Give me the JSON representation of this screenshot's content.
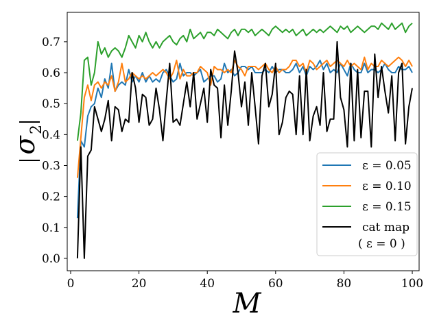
{
  "chart_data": {
    "type": "line",
    "title": "",
    "xlabel": "M",
    "ylabel_base": "σ",
    "ylabel_sub": "2",
    "xlim": [
      -1,
      102
    ],
    "ylim": [
      -0.04,
      0.795
    ],
    "xticks": [
      0,
      20,
      40,
      60,
      80,
      100
    ],
    "yticks": [
      0.0,
      0.1,
      0.2,
      0.3,
      0.4,
      0.5,
      0.6,
      0.7
    ],
    "xtick_labels": [
      "0",
      "20",
      "40",
      "60",
      "80",
      "100"
    ],
    "ytick_labels": [
      "0.0",
      "0.1",
      "0.2",
      "0.3",
      "0.4",
      "0.5",
      "0.6",
      "0.7"
    ],
    "grid": false,
    "legend_position": "lower-right",
    "x": [
      2,
      3,
      4,
      5,
      6,
      7,
      8,
      9,
      10,
      11,
      12,
      13,
      14,
      15,
      16,
      17,
      18,
      19,
      20,
      21,
      22,
      23,
      24,
      25,
      26,
      27,
      28,
      29,
      30,
      31,
      32,
      33,
      34,
      35,
      36,
      37,
      38,
      39,
      40,
      41,
      42,
      43,
      44,
      45,
      46,
      47,
      48,
      49,
      50,
      51,
      52,
      53,
      54,
      55,
      56,
      57,
      58,
      59,
      60,
      61,
      62,
      63,
      64,
      65,
      66,
      67,
      68,
      69,
      70,
      71,
      72,
      73,
      74,
      75,
      76,
      77,
      78,
      79,
      80,
      81,
      82,
      83,
      84,
      85,
      86,
      87,
      88,
      89,
      90,
      91,
      92,
      93,
      94,
      95,
      96,
      97,
      98,
      99,
      100
    ],
    "series": [
      {
        "name": "ε = 0.05",
        "color": "#1f77b4",
        "values": [
          0.13,
          0.38,
          0.36,
          0.46,
          0.49,
          0.5,
          0.55,
          0.52,
          0.58,
          0.55,
          0.63,
          0.54,
          0.56,
          0.57,
          0.56,
          0.61,
          0.57,
          0.59,
          0.57,
          0.6,
          0.57,
          0.59,
          0.57,
          0.58,
          0.57,
          0.6,
          0.61,
          0.59,
          0.57,
          0.58,
          0.63,
          0.59,
          0.6,
          0.6,
          0.59,
          0.6,
          0.61,
          0.57,
          0.58,
          0.59,
          0.59,
          0.57,
          0.58,
          0.63,
          0.6,
          0.61,
          0.59,
          0.6,
          0.62,
          0.62,
          0.61,
          0.62,
          0.6,
          0.6,
          0.6,
          0.61,
          0.6,
          0.62,
          0.6,
          0.61,
          0.61,
          0.6,
          0.6,
          0.61,
          0.63,
          0.6,
          0.62,
          0.59,
          0.62,
          0.61,
          0.62,
          0.64,
          0.61,
          0.63,
          0.6,
          0.61,
          0.6,
          0.63,
          0.61,
          0.59,
          0.63,
          0.61,
          0.6,
          0.6,
          0.63,
          0.6,
          0.61,
          0.61,
          0.6,
          0.61,
          0.63,
          0.61,
          0.6,
          0.6,
          0.62,
          0.61,
          0.61,
          0.62,
          0.6
        ]
      },
      {
        "name": "ε = 0.10",
        "color": "#ff7f0e",
        "values": [
          0.26,
          0.39,
          0.52,
          0.56,
          0.51,
          0.56,
          0.57,
          0.55,
          0.57,
          0.56,
          0.59,
          0.54,
          0.57,
          0.63,
          0.57,
          0.58,
          0.6,
          0.59,
          0.58,
          0.59,
          0.58,
          0.59,
          0.6,
          0.59,
          0.6,
          0.61,
          0.6,
          0.58,
          0.6,
          0.64,
          0.58,
          0.61,
          0.59,
          0.59,
          0.6,
          0.6,
          0.62,
          0.61,
          0.6,
          0.56,
          0.62,
          0.61,
          0.61,
          0.6,
          0.61,
          0.6,
          0.64,
          0.62,
          0.61,
          0.59,
          0.62,
          0.62,
          0.62,
          0.61,
          0.62,
          0.63,
          0.61,
          0.6,
          0.62,
          0.6,
          0.61,
          0.61,
          0.62,
          0.64,
          0.64,
          0.62,
          0.63,
          0.6,
          0.64,
          0.63,
          0.61,
          0.62,
          0.63,
          0.64,
          0.62,
          0.63,
          0.64,
          0.63,
          0.62,
          0.64,
          0.62,
          0.63,
          0.62,
          0.61,
          0.65,
          0.61,
          0.63,
          0.62,
          0.62,
          0.64,
          0.63,
          0.62,
          0.63,
          0.64,
          0.65,
          0.64,
          0.62,
          0.64,
          0.62
        ]
      },
      {
        "name": "ε = 0.15",
        "color": "#2ca02c",
        "values": [
          0.38,
          0.47,
          0.64,
          0.65,
          0.56,
          0.6,
          0.7,
          0.66,
          0.68,
          0.65,
          0.67,
          0.68,
          0.67,
          0.65,
          0.68,
          0.72,
          0.7,
          0.68,
          0.72,
          0.7,
          0.73,
          0.7,
          0.68,
          0.7,
          0.68,
          0.7,
          0.71,
          0.72,
          0.7,
          0.69,
          0.71,
          0.72,
          0.7,
          0.74,
          0.71,
          0.72,
          0.73,
          0.71,
          0.73,
          0.73,
          0.72,
          0.74,
          0.73,
          0.72,
          0.71,
          0.73,
          0.74,
          0.72,
          0.74,
          0.74,
          0.73,
          0.74,
          0.72,
          0.73,
          0.74,
          0.73,
          0.72,
          0.74,
          0.75,
          0.74,
          0.73,
          0.74,
          0.73,
          0.74,
          0.72,
          0.73,
          0.74,
          0.72,
          0.73,
          0.74,
          0.73,
          0.74,
          0.73,
          0.74,
          0.75,
          0.74,
          0.73,
          0.75,
          0.74,
          0.75,
          0.73,
          0.74,
          0.75,
          0.74,
          0.73,
          0.74,
          0.75,
          0.75,
          0.74,
          0.76,
          0.75,
          0.74,
          0.76,
          0.74,
          0.75,
          0.76,
          0.73,
          0.75,
          0.76
        ]
      },
      {
        "name": "cat map",
        "note": "( ε = 0 )",
        "color": "#000000",
        "values": [
          0.0,
          0.36,
          0.0,
          0.33,
          0.35,
          0.49,
          0.45,
          0.41,
          0.45,
          0.51,
          0.38,
          0.49,
          0.48,
          0.41,
          0.45,
          0.44,
          0.6,
          0.55,
          0.44,
          0.53,
          0.52,
          0.43,
          0.45,
          0.55,
          0.48,
          0.38,
          0.51,
          0.63,
          0.44,
          0.45,
          0.43,
          0.5,
          0.57,
          0.49,
          0.6,
          0.45,
          0.5,
          0.55,
          0.44,
          0.61,
          0.56,
          0.55,
          0.39,
          0.56,
          0.43,
          0.54,
          0.67,
          0.6,
          0.49,
          0.57,
          0.43,
          0.6,
          0.49,
          0.37,
          0.59,
          0.63,
          0.49,
          0.53,
          0.63,
          0.4,
          0.44,
          0.52,
          0.54,
          0.53,
          0.4,
          0.59,
          0.4,
          0.61,
          0.38,
          0.46,
          0.49,
          0.43,
          0.6,
          0.41,
          0.45,
          0.45,
          0.7,
          0.52,
          0.48,
          0.36,
          0.63,
          0.38,
          0.61,
          0.39,
          0.54,
          0.54,
          0.36,
          0.66,
          0.52,
          0.62,
          0.54,
          0.47,
          0.59,
          0.38,
          0.6,
          0.63,
          0.37,
          0.49,
          0.55
        ]
      }
    ]
  }
}
